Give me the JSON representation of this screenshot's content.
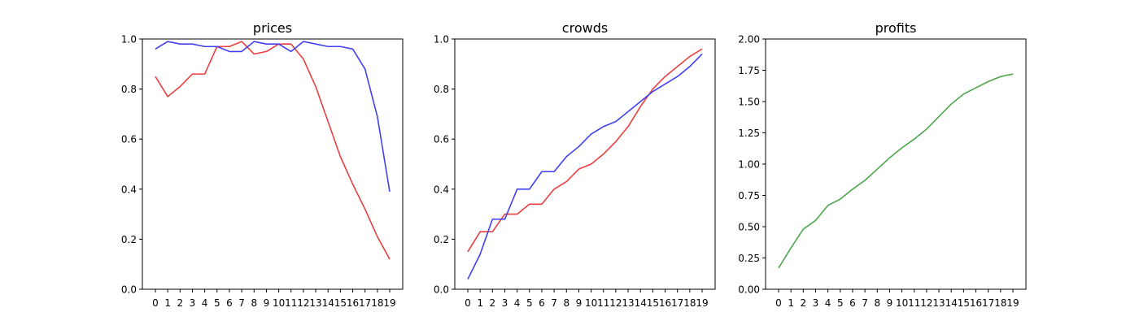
{
  "chart_data": [
    {
      "type": "line",
      "title": "prices",
      "xlabel": "",
      "ylabel": "",
      "x": [
        0,
        1,
        2,
        3,
        4,
        5,
        6,
        7,
        8,
        9,
        10,
        11,
        12,
        13,
        14,
        15,
        16,
        17,
        18,
        19
      ],
      "x_tick_labels": [
        "0",
        "1",
        "2",
        "3",
        "4",
        "5",
        "6",
        "7",
        "8",
        "9",
        "10",
        "11",
        "12",
        "13",
        "14",
        "15",
        "16",
        "17",
        "18",
        "19"
      ],
      "ylim": [
        0,
        1.0
      ],
      "y_ticks": [
        0.0,
        0.2,
        0.4,
        0.6,
        0.8,
        1.0
      ],
      "y_tick_labels": [
        "0.0",
        "0.2",
        "0.4",
        "0.6",
        "0.8",
        "1.0"
      ],
      "grid": false,
      "series": [
        {
          "color": "#e8403f",
          "values": [
            0.85,
            0.77,
            0.81,
            0.86,
            0.86,
            0.97,
            0.97,
            0.99,
            0.94,
            0.95,
            0.98,
            0.98,
            0.92,
            0.81,
            0.67,
            0.53,
            0.42,
            0.32,
            0.21,
            0.12
          ]
        },
        {
          "color": "#4040f0",
          "values": [
            0.96,
            0.99,
            0.98,
            0.98,
            0.97,
            0.97,
            0.95,
            0.95,
            0.99,
            0.98,
            0.98,
            0.95,
            0.99,
            0.98,
            0.97,
            0.97,
            0.96,
            0.88,
            0.69,
            0.39
          ]
        }
      ]
    },
    {
      "type": "line",
      "title": "crowds",
      "xlabel": "",
      "ylabel": "",
      "x": [
        0,
        1,
        2,
        3,
        4,
        5,
        6,
        7,
        8,
        9,
        10,
        11,
        12,
        13,
        14,
        15,
        16,
        17,
        18,
        19
      ],
      "x_tick_labels": [
        "0",
        "1",
        "2",
        "3",
        "4",
        "5",
        "6",
        "7",
        "8",
        "9",
        "10",
        "11",
        "12",
        "13",
        "14",
        "15",
        "16",
        "17",
        "18",
        "19"
      ],
      "ylim": [
        0,
        1.0
      ],
      "y_ticks": [
        0.0,
        0.2,
        0.4,
        0.6,
        0.8,
        1.0
      ],
      "y_tick_labels": [
        "0.0",
        "0.2",
        "0.4",
        "0.6",
        "0.8",
        "1.0"
      ],
      "grid": false,
      "series": [
        {
          "color": "#e8403f",
          "values": [
            0.15,
            0.23,
            0.23,
            0.3,
            0.3,
            0.34,
            0.34,
            0.4,
            0.43,
            0.48,
            0.5,
            0.54,
            0.59,
            0.65,
            0.73,
            0.8,
            0.85,
            0.89,
            0.93,
            0.96
          ]
        },
        {
          "color": "#4040f0",
          "values": [
            0.04,
            0.14,
            0.28,
            0.28,
            0.4,
            0.4,
            0.47,
            0.47,
            0.53,
            0.57,
            0.62,
            0.65,
            0.67,
            0.71,
            0.75,
            0.79,
            0.82,
            0.85,
            0.89,
            0.94
          ]
        }
      ]
    },
    {
      "type": "line",
      "title": "profits",
      "xlabel": "",
      "ylabel": "",
      "x": [
        0,
        1,
        2,
        3,
        4,
        5,
        6,
        7,
        8,
        9,
        10,
        11,
        12,
        13,
        14,
        15,
        16,
        17,
        18,
        19
      ],
      "x_tick_labels": [
        "0",
        "1",
        "2",
        "3",
        "4",
        "5",
        "6",
        "7",
        "8",
        "9",
        "10",
        "11",
        "12",
        "13",
        "14",
        "15",
        "16",
        "17",
        "18",
        "19"
      ],
      "ylim": [
        0,
        2.0
      ],
      "y_ticks": [
        0.0,
        0.25,
        0.5,
        0.75,
        1.0,
        1.25,
        1.5,
        1.75,
        2.0
      ],
      "y_tick_labels": [
        "0.00",
        "0.25",
        "0.50",
        "0.75",
        "1.00",
        "1.25",
        "1.50",
        "1.75",
        "2.00"
      ],
      "grid": false,
      "series": [
        {
          "color": "#4ea64e",
          "values": [
            0.17,
            0.33,
            0.48,
            0.55,
            0.67,
            0.72,
            0.8,
            0.87,
            0.96,
            1.05,
            1.13,
            1.2,
            1.28,
            1.38,
            1.48,
            1.56,
            1.61,
            1.66,
            1.7,
            1.72
          ]
        }
      ]
    }
  ]
}
